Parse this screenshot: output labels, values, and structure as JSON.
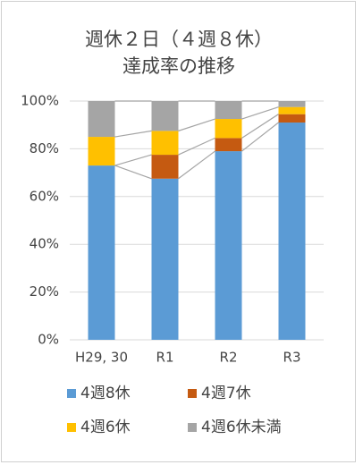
{
  "chart_data": {
    "type": "stacked_bar",
    "title": [
      "週休２日（４週８休）",
      "達成率の推移"
    ],
    "categories": [
      "H29, 30",
      "R1",
      "R2",
      "R3"
    ],
    "series": [
      {
        "name": "4週8休",
        "color": "#5b9bd5",
        "values": [
          73,
          67.5,
          79,
          91
        ]
      },
      {
        "name": "4週7休",
        "color": "#c55a11",
        "values": [
          0,
          10,
          5.5,
          3.5
        ]
      },
      {
        "name": "4週6休",
        "color": "#ffc000",
        "values": [
          12,
          10,
          8,
          3
        ]
      },
      {
        "name": "4週6休未満",
        "color": "#a5a5a5",
        "values": [
          15,
          12.5,
          7.5,
          2.5
        ]
      }
    ],
    "ylim": [
      0,
      100
    ],
    "yticks": [
      {
        "value": 0,
        "label": "0%"
      },
      {
        "value": 20,
        "label": "20%"
      },
      {
        "value": 40,
        "label": "40%"
      },
      {
        "value": 60,
        "label": "60%"
      },
      {
        "value": 80,
        "label": "80%"
      },
      {
        "value": 100,
        "label": "100%"
      }
    ],
    "grid": true,
    "series_lines": true
  }
}
